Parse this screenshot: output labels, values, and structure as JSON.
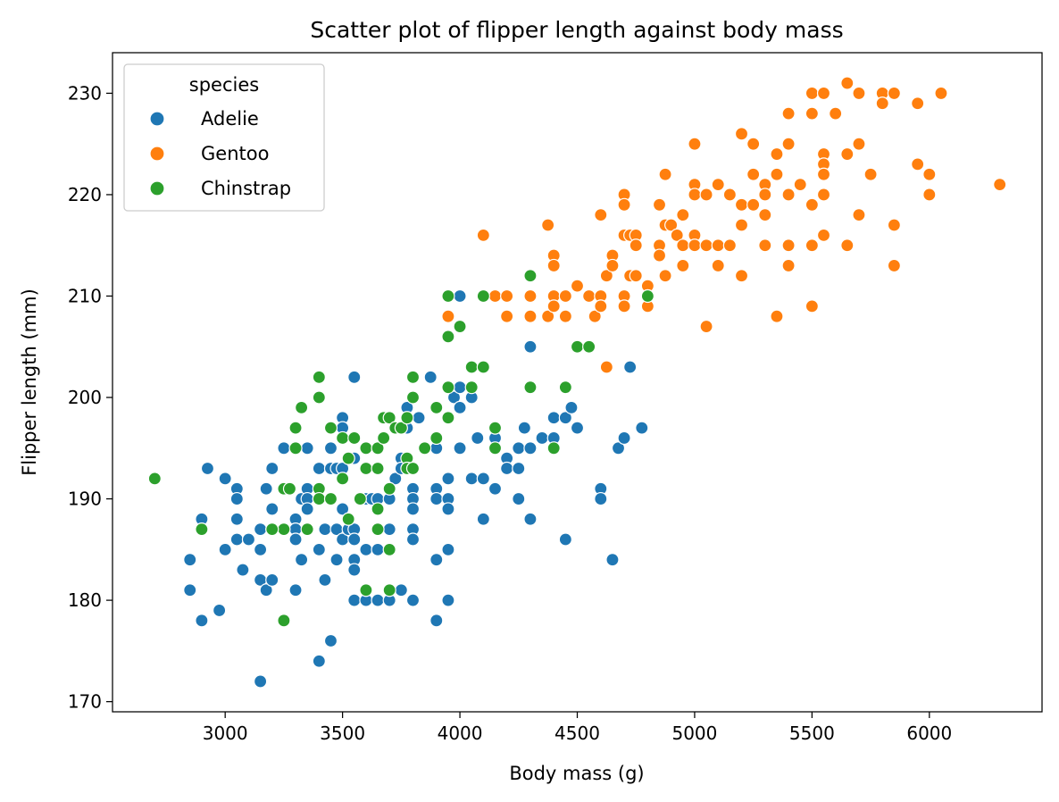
{
  "chart_data": {
    "type": "scatter",
    "title": "Scatter plot of flipper length against body mass",
    "xlabel": "Body mass (g)",
    "ylabel": "Flipper length (mm)",
    "xlim": [
      2520,
      6480
    ],
    "ylim": [
      169,
      234
    ],
    "xticks": [
      3000,
      3500,
      4000,
      4500,
      5000,
      5500,
      6000
    ],
    "yticks": [
      170,
      180,
      190,
      200,
      210,
      220,
      230
    ],
    "grid": false,
    "legend": {
      "title": "species",
      "position": "top-left"
    },
    "series": [
      {
        "name": "Adelie",
        "color": "#1f77b4",
        "points": [
          [
            2850,
            184
          ],
          [
            2850,
            181
          ],
          [
            2900,
            188
          ],
          [
            2900,
            178
          ],
          [
            2925,
            193
          ],
          [
            2975,
            179
          ],
          [
            3000,
            192
          ],
          [
            3000,
            185
          ],
          [
            3050,
            191
          ],
          [
            3050,
            190
          ],
          [
            3050,
            188
          ],
          [
            3050,
            186
          ],
          [
            3075,
            183
          ],
          [
            3100,
            186
          ],
          [
            3150,
            187
          ],
          [
            3150,
            185
          ],
          [
            3150,
            182
          ],
          [
            3150,
            172
          ],
          [
            3175,
            191
          ],
          [
            3175,
            181
          ],
          [
            3200,
            193
          ],
          [
            3200,
            189
          ],
          [
            3200,
            187
          ],
          [
            3200,
            182
          ],
          [
            3250,
            195
          ],
          [
            3250,
            187
          ],
          [
            3275,
            191
          ],
          [
            3300,
            188
          ],
          [
            3300,
            187
          ],
          [
            3300,
            186
          ],
          [
            3300,
            181
          ],
          [
            3325,
            184
          ],
          [
            3325,
            190
          ],
          [
            3350,
            195
          ],
          [
            3350,
            191
          ],
          [
            3350,
            190
          ],
          [
            3350,
            189
          ],
          [
            3400,
            193
          ],
          [
            3400,
            190
          ],
          [
            3400,
            185
          ],
          [
            3400,
            174
          ],
          [
            3425,
            187
          ],
          [
            3425,
            182
          ],
          [
            3450,
            195
          ],
          [
            3450,
            193
          ],
          [
            3450,
            176
          ],
          [
            3475,
            193
          ],
          [
            3475,
            187
          ],
          [
            3475,
            184
          ],
          [
            3500,
            198
          ],
          [
            3500,
            197
          ],
          [
            3500,
            193
          ],
          [
            3500,
            189
          ],
          [
            3500,
            186
          ],
          [
            3525,
            187
          ],
          [
            3550,
            202
          ],
          [
            3550,
            194
          ],
          [
            3550,
            187
          ],
          [
            3550,
            186
          ],
          [
            3550,
            184
          ],
          [
            3550,
            183
          ],
          [
            3550,
            180
          ],
          [
            3600,
            190
          ],
          [
            3600,
            185
          ],
          [
            3600,
            180
          ],
          [
            3625,
            190
          ],
          [
            3650,
            190
          ],
          [
            3650,
            185
          ],
          [
            3650,
            180
          ],
          [
            3700,
            190
          ],
          [
            3700,
            187
          ],
          [
            3700,
            180
          ],
          [
            3725,
            192
          ],
          [
            3750,
            194
          ],
          [
            3750,
            193
          ],
          [
            3750,
            181
          ],
          [
            3775,
            199
          ],
          [
            3775,
            197
          ],
          [
            3800,
            191
          ],
          [
            3800,
            190
          ],
          [
            3800,
            189
          ],
          [
            3800,
            187
          ],
          [
            3800,
            186
          ],
          [
            3800,
            180
          ],
          [
            3825,
            198
          ],
          [
            3875,
            202
          ],
          [
            3900,
            195
          ],
          [
            3900,
            191
          ],
          [
            3900,
            190
          ],
          [
            3900,
            184
          ],
          [
            3900,
            178
          ],
          [
            3950,
            192
          ],
          [
            3950,
            190
          ],
          [
            3950,
            189
          ],
          [
            3950,
            185
          ],
          [
            3950,
            180
          ],
          [
            3975,
            200
          ],
          [
            4000,
            201
          ],
          [
            4000,
            199
          ],
          [
            4000,
            195
          ],
          [
            4000,
            210
          ],
          [
            4050,
            200
          ],
          [
            4050,
            192
          ],
          [
            4075,
            196
          ],
          [
            4100,
            192
          ],
          [
            4100,
            188
          ],
          [
            4150,
            196
          ],
          [
            4150,
            191
          ],
          [
            4200,
            194
          ],
          [
            4200,
            193
          ],
          [
            4250,
            195
          ],
          [
            4250,
            193
          ],
          [
            4250,
            190
          ],
          [
            4275,
            197
          ],
          [
            4300,
            205
          ],
          [
            4300,
            195
          ],
          [
            4300,
            188
          ],
          [
            4350,
            196
          ],
          [
            4400,
            198
          ],
          [
            4400,
            196
          ],
          [
            4450,
            198
          ],
          [
            4450,
            186
          ],
          [
            4475,
            199
          ],
          [
            4500,
            197
          ],
          [
            4600,
            191
          ],
          [
            4600,
            190
          ],
          [
            4650,
            184
          ],
          [
            4675,
            195
          ],
          [
            4700,
            196
          ],
          [
            4725,
            203
          ],
          [
            4775,
            197
          ]
        ]
      },
      {
        "name": "Gentoo",
        "color": "#ff7f0e",
        "points": [
          [
            3950,
            208
          ],
          [
            4100,
            216
          ],
          [
            4150,
            210
          ],
          [
            4200,
            210
          ],
          [
            4200,
            208
          ],
          [
            4300,
            210
          ],
          [
            4300,
            208
          ],
          [
            4375,
            208
          ],
          [
            4375,
            217
          ],
          [
            4400,
            214
          ],
          [
            4400,
            213
          ],
          [
            4400,
            210
          ],
          [
            4400,
            209
          ],
          [
            4450,
            210
          ],
          [
            4450,
            208
          ],
          [
            4500,
            211
          ],
          [
            4550,
            210
          ],
          [
            4575,
            208
          ],
          [
            4600,
            218
          ],
          [
            4600,
            210
          ],
          [
            4600,
            209
          ],
          [
            4625,
            203
          ],
          [
            4625,
            212
          ],
          [
            4650,
            214
          ],
          [
            4650,
            213
          ],
          [
            4700,
            220
          ],
          [
            4700,
            219
          ],
          [
            4700,
            216
          ],
          [
            4700,
            210
          ],
          [
            4700,
            209
          ],
          [
            4725,
            216
          ],
          [
            4725,
            212
          ],
          [
            4750,
            216
          ],
          [
            4750,
            215
          ],
          [
            4750,
            212
          ],
          [
            4800,
            211
          ],
          [
            4800,
            210
          ],
          [
            4800,
            209
          ],
          [
            4850,
            219
          ],
          [
            4850,
            215
          ],
          [
            4850,
            214
          ],
          [
            4875,
            222
          ],
          [
            4875,
            217
          ],
          [
            4875,
            212
          ],
          [
            4900,
            217
          ],
          [
            4925,
            216
          ],
          [
            4950,
            218
          ],
          [
            4950,
            215
          ],
          [
            4950,
            213
          ],
          [
            5000,
            225
          ],
          [
            5000,
            221
          ],
          [
            5000,
            220
          ],
          [
            5000,
            216
          ],
          [
            5000,
            215
          ],
          [
            5050,
            220
          ],
          [
            5050,
            215
          ],
          [
            5050,
            207
          ],
          [
            5100,
            221
          ],
          [
            5100,
            215
          ],
          [
            5100,
            213
          ],
          [
            5150,
            220
          ],
          [
            5150,
            215
          ],
          [
            5200,
            226
          ],
          [
            5200,
            219
          ],
          [
            5200,
            217
          ],
          [
            5200,
            212
          ],
          [
            5250,
            225
          ],
          [
            5250,
            222
          ],
          [
            5250,
            219
          ],
          [
            5300,
            221
          ],
          [
            5300,
            220
          ],
          [
            5300,
            218
          ],
          [
            5300,
            215
          ],
          [
            5350,
            224
          ],
          [
            5350,
            222
          ],
          [
            5350,
            208
          ],
          [
            5400,
            228
          ],
          [
            5400,
            225
          ],
          [
            5400,
            220
          ],
          [
            5400,
            215
          ],
          [
            5400,
            213
          ],
          [
            5450,
            221
          ],
          [
            5500,
            230
          ],
          [
            5500,
            228
          ],
          [
            5500,
            219
          ],
          [
            5500,
            215
          ],
          [
            5500,
            209
          ],
          [
            5550,
            230
          ],
          [
            5550,
            224
          ],
          [
            5550,
            223
          ],
          [
            5550,
            222
          ],
          [
            5550,
            220
          ],
          [
            5550,
            216
          ],
          [
            5600,
            228
          ],
          [
            5650,
            231
          ],
          [
            5650,
            224
          ],
          [
            5650,
            215
          ],
          [
            5700,
            230
          ],
          [
            5700,
            225
          ],
          [
            5700,
            218
          ],
          [
            5750,
            222
          ],
          [
            5800,
            230
          ],
          [
            5800,
            229
          ],
          [
            5850,
            230
          ],
          [
            5850,
            217
          ],
          [
            5850,
            213
          ],
          [
            5950,
            229
          ],
          [
            5950,
            223
          ],
          [
            6000,
            222
          ],
          [
            6000,
            220
          ],
          [
            6050,
            230
          ],
          [
            6300,
            221
          ]
        ]
      },
      {
        "name": "Chinstrap",
        "color": "#2ca02c",
        "points": [
          [
            2700,
            192
          ],
          [
            2900,
            187
          ],
          [
            3250,
            191
          ],
          [
            3250,
            187
          ],
          [
            3250,
            178
          ],
          [
            3275,
            191
          ],
          [
            3200,
            187
          ],
          [
            3300,
            197
          ],
          [
            3300,
            195
          ],
          [
            3325,
            199
          ],
          [
            3350,
            187
          ],
          [
            3400,
            202
          ],
          [
            3400,
            200
          ],
          [
            3400,
            191
          ],
          [
            3400,
            190
          ],
          [
            3450,
            197
          ],
          [
            3450,
            190
          ],
          [
            3500,
            196
          ],
          [
            3500,
            192
          ],
          [
            3525,
            194
          ],
          [
            3525,
            188
          ],
          [
            3550,
            196
          ],
          [
            3575,
            190
          ],
          [
            3600,
            195
          ],
          [
            3600,
            193
          ],
          [
            3600,
            181
          ],
          [
            3650,
            195
          ],
          [
            3650,
            193
          ],
          [
            3650,
            189
          ],
          [
            3650,
            187
          ],
          [
            3675,
            198
          ],
          [
            3675,
            196
          ],
          [
            3700,
            198
          ],
          [
            3700,
            191
          ],
          [
            3700,
            185
          ],
          [
            3700,
            181
          ],
          [
            3725,
            197
          ],
          [
            3750,
            197
          ],
          [
            3775,
            198
          ],
          [
            3775,
            194
          ],
          [
            3775,
            193
          ],
          [
            3800,
            202
          ],
          [
            3800,
            200
          ],
          [
            3800,
            193
          ],
          [
            3850,
            195
          ],
          [
            3900,
            199
          ],
          [
            3900,
            196
          ],
          [
            3950,
            210
          ],
          [
            3950,
            206
          ],
          [
            3950,
            201
          ],
          [
            3950,
            198
          ],
          [
            4000,
            207
          ],
          [
            4050,
            203
          ],
          [
            4050,
            201
          ],
          [
            4100,
            210
          ],
          [
            4100,
            203
          ],
          [
            4150,
            197
          ],
          [
            4150,
            195
          ],
          [
            4300,
            212
          ],
          [
            4300,
            201
          ],
          [
            4400,
            195
          ],
          [
            4450,
            201
          ],
          [
            4500,
            205
          ],
          [
            4550,
            205
          ],
          [
            4800,
            210
          ]
        ]
      }
    ]
  }
}
